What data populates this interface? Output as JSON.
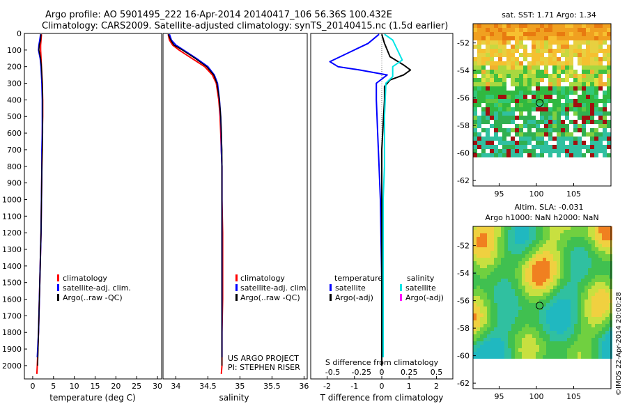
{
  "header": {
    "line1": "Argo profile: AO 5901495_222 16-Apr-2014 20140417_106 56.36S 100.432E",
    "line2": "Climatology: CARS2009. Satellite-adjusted climatology: synTS_20140415.nc (1.5d earlier)"
  },
  "colors": {
    "climatology": "#ff0000",
    "satellite": "#0000ff",
    "argo": "#000000",
    "sal_satellite": "#00e5e5",
    "sal_argo": "#ff00ff"
  },
  "chart_data": [
    {
      "id": "temperature",
      "type": "line",
      "xlabel": "temperature (deg C)",
      "ylabel": "",
      "xlim": [
        -2,
        31
      ],
      "ylim": [
        2080,
        0
      ],
      "xticks": [
        "0",
        "5",
        "10",
        "15",
        "20",
        "25",
        "30"
      ],
      "yticks": [
        "0",
        "100",
        "200",
        "300",
        "400",
        "500",
        "600",
        "700",
        "800",
        "900",
        "1000",
        "1100",
        "1200",
        "1300",
        "1400",
        "1500",
        "1600",
        "1700",
        "1800",
        "1900",
        "2000"
      ],
      "legend": [
        "climatology",
        "satellite-adj. clim.",
        "Argo(..raw -QC)"
      ],
      "series": [
        {
          "name": "climatology",
          "color": "#ff0000",
          "width": 2,
          "points": [
            [
              2.1,
              5
            ],
            [
              2.0,
              40
            ],
            [
              1.9,
              70
            ],
            [
              1.9,
              100
            ],
            [
              2.0,
              150
            ],
            [
              2.1,
              200
            ],
            [
              2.2,
              250
            ],
            [
              2.3,
              300
            ],
            [
              2.4,
              400
            ],
            [
              2.4,
              500
            ],
            [
              2.3,
              600
            ],
            [
              2.3,
              700
            ],
            [
              2.2,
              800
            ],
            [
              2.1,
              1000
            ],
            [
              2.0,
              1200
            ],
            [
              1.8,
              1400
            ],
            [
              1.6,
              1600
            ],
            [
              1.4,
              1800
            ],
            [
              1.1,
              2000
            ],
            [
              1.0,
              2050
            ]
          ]
        },
        {
          "name": "satellite-adj. clim.",
          "color": "#0000ff",
          "width": 2,
          "points": [
            [
              1.9,
              5
            ],
            [
              1.7,
              40
            ],
            [
              1.5,
              70
            ],
            [
              1.4,
              100
            ],
            [
              1.8,
              150
            ],
            [
              2.0,
              200
            ],
            [
              2.1,
              250
            ],
            [
              2.2,
              300
            ],
            [
              2.3,
              400
            ],
            [
              2.3,
              500
            ],
            [
              2.3,
              600
            ],
            [
              2.2,
              700
            ],
            [
              2.2,
              800
            ],
            [
              2.1,
              1000
            ],
            [
              2.0,
              1200
            ],
            [
              1.8,
              1400
            ],
            [
              1.6,
              1600
            ],
            [
              1.4,
              1800
            ],
            [
              1.1,
              1950
            ]
          ]
        },
        {
          "name": "Argo(..raw -QC)",
          "color": "#000000",
          "width": 1.5,
          "points": [
            [
              2.0,
              5
            ],
            [
              1.9,
              40
            ],
            [
              1.6,
              70
            ],
            [
              1.5,
              100
            ],
            [
              1.9,
              150
            ],
            [
              2.1,
              200
            ],
            [
              2.2,
              250
            ],
            [
              2.3,
              300
            ],
            [
              2.4,
              400
            ],
            [
              2.4,
              500
            ],
            [
              2.4,
              600
            ],
            [
              2.3,
              700
            ],
            [
              2.2,
              800
            ],
            [
              2.1,
              1000
            ],
            [
              2.0,
              1200
            ],
            [
              1.8,
              1400
            ],
            [
              1.6,
              1600
            ],
            [
              1.4,
              1800
            ],
            [
              1.2,
              2000
            ]
          ]
        }
      ]
    },
    {
      "id": "salinity",
      "type": "line",
      "xlabel": "salinity",
      "xlim": [
        33.8,
        36.05
      ],
      "ylim": [
        2080,
        0
      ],
      "xticks": [
        "34",
        "34.5",
        "35",
        "35.5",
        "36"
      ],
      "legend": [
        "climatology",
        "satellite-adj. clim.",
        "Argo(..raw -QC)"
      ],
      "annotation": [
        "US ARGO PROJECT",
        "PI: STEPHEN RISER"
      ],
      "series": [
        {
          "name": "climatology",
          "color": "#ff0000",
          "width": 2,
          "points": [
            [
              33.88,
              5
            ],
            [
              33.9,
              40
            ],
            [
              33.95,
              70
            ],
            [
              34.05,
              100
            ],
            [
              34.25,
              150
            ],
            [
              34.45,
              200
            ],
            [
              34.57,
              250
            ],
            [
              34.63,
              300
            ],
            [
              34.67,
              400
            ],
            [
              34.69,
              500
            ],
            [
              34.7,
              600
            ],
            [
              34.71,
              700
            ],
            [
              34.72,
              800
            ],
            [
              34.72,
              1000
            ],
            [
              34.73,
              1200
            ],
            [
              34.73,
              1400
            ],
            [
              34.73,
              1600
            ],
            [
              34.72,
              1800
            ],
            [
              34.72,
              2000
            ],
            [
              34.71,
              2050
            ]
          ]
        },
        {
          "name": "satellite-adj. clim.",
          "color": "#0000ff",
          "width": 2,
          "points": [
            [
              33.9,
              5
            ],
            [
              33.93,
              40
            ],
            [
              34.0,
              70
            ],
            [
              34.12,
              100
            ],
            [
              34.32,
              150
            ],
            [
              34.5,
              200
            ],
            [
              34.6,
              250
            ],
            [
              34.65,
              300
            ],
            [
              34.68,
              400
            ],
            [
              34.7,
              500
            ],
            [
              34.71,
              600
            ],
            [
              34.71,
              700
            ],
            [
              34.72,
              800
            ],
            [
              34.72,
              1000
            ],
            [
              34.72,
              1200
            ],
            [
              34.72,
              1400
            ],
            [
              34.72,
              1600
            ],
            [
              34.72,
              1800
            ],
            [
              34.72,
              1950
            ]
          ]
        },
        {
          "name": "Argo(..raw -QC)",
          "color": "#000000",
          "width": 1.5,
          "points": [
            [
              33.88,
              5
            ],
            [
              33.92,
              40
            ],
            [
              33.97,
              70
            ],
            [
              34.1,
              100
            ],
            [
              34.3,
              150
            ],
            [
              34.48,
              200
            ],
            [
              34.59,
              250
            ],
            [
              34.64,
              300
            ],
            [
              34.68,
              400
            ],
            [
              34.7,
              500
            ],
            [
              34.71,
              600
            ],
            [
              34.72,
              700
            ],
            [
              34.72,
              800
            ],
            [
              34.72,
              1000
            ],
            [
              34.72,
              1200
            ],
            [
              34.72,
              1400
            ],
            [
              34.72,
              1600
            ],
            [
              34.72,
              1800
            ],
            [
              34.72,
              2000
            ]
          ]
        }
      ]
    },
    {
      "id": "difference",
      "type": "line",
      "xlabel": "T difference from climatology",
      "xlabel_top": "S difference from climatology",
      "xlim": [
        -2.6,
        2.6
      ],
      "ylim": [
        2080,
        0
      ],
      "xticks": [
        "-2",
        "-1",
        "0",
        "1",
        "2"
      ],
      "xticks_s": [
        "-0.5",
        "-0.25",
        "0",
        "0.25",
        "0.5"
      ],
      "legend_left": {
        "title": "temperature",
        "items": [
          "satellite",
          "Argo(-adj)"
        ]
      },
      "legend_right": {
        "title": "salinity",
        "items": [
          "satellite",
          "Argo(-adj)"
        ]
      },
      "series": [
        {
          "name": "temperature satellite",
          "color": "#0000ff",
          "width": 2,
          "points": [
            [
              -0.1,
              5
            ],
            [
              -0.5,
              60
            ],
            [
              -1.9,
              170
            ],
            [
              -1.6,
              200
            ],
            [
              -0.8,
              220
            ],
            [
              0.2,
              250
            ],
            [
              -0.2,
              300
            ],
            [
              -0.2,
              400
            ],
            [
              -0.15,
              600
            ],
            [
              -0.1,
              800
            ],
            [
              -0.05,
              1000
            ],
            [
              0,
              1500
            ],
            [
              0,
              1700
            ],
            [
              0,
              1950
            ]
          ]
        },
        {
          "name": "temperature Argo(-adj)",
          "color": "#000000",
          "width": 2,
          "points": [
            [
              0,
              5
            ],
            [
              0.1,
              60
            ],
            [
              0.3,
              140
            ],
            [
              0.8,
              190
            ],
            [
              1.05,
              220
            ],
            [
              0.8,
              250
            ],
            [
              0.3,
              280
            ],
            [
              0.1,
              320
            ],
            [
              0.1,
              400
            ],
            [
              0,
              700
            ],
            [
              0,
              1000
            ],
            [
              0,
              1500
            ],
            [
              0,
              2000
            ]
          ]
        },
        {
          "name": "salinity satellite",
          "color": "#00e5e5",
          "width": 2,
          "points": [
            [
              0.1,
              5
            ],
            [
              0.4,
              40
            ],
            [
              0.75,
              160
            ],
            [
              0.4,
              200
            ],
            [
              0.4,
              260
            ],
            [
              0.15,
              300
            ],
            [
              0.1,
              500
            ],
            [
              0.1,
              800
            ],
            [
              0.05,
              1000
            ],
            [
              0.05,
              1500
            ],
            [
              0.05,
              1950
            ]
          ]
        },
        {
          "name": "salinity Argo(-adj)",
          "color": "#ff00ff",
          "width": 1,
          "points": []
        }
      ]
    },
    {
      "id": "sst_map",
      "type": "heatmap",
      "title": "sat. SST: 1.71  Argo: 1.34",
      "xlim": [
        91.5,
        110
      ],
      "ylim": [
        -62.4,
        -50.6
      ],
      "xticks": [
        "95",
        "100",
        "105"
      ],
      "yticks": [
        "-52",
        "-54",
        "-56",
        "-58",
        "-60",
        "-62"
      ],
      "marker": {
        "lon": 100.432,
        "lat": -56.36
      }
    },
    {
      "id": "sla_map",
      "type": "heatmap",
      "title_line1": "Altim. SLA: -0.031",
      "title_line2": "Argo h1000: NaN h2000: NaN",
      "xlim": [
        91.5,
        110
      ],
      "ylim": [
        -62.4,
        -50.6
      ],
      "xticks": [
        "95",
        "100",
        "105"
      ],
      "yticks": [
        "-52",
        "-54",
        "-56",
        "-58",
        "-60",
        "-62"
      ],
      "marker": {
        "lon": 100.432,
        "lat": -56.36
      },
      "side_label": "©IMOS 22-Apr-2014 20:00:28"
    }
  ]
}
